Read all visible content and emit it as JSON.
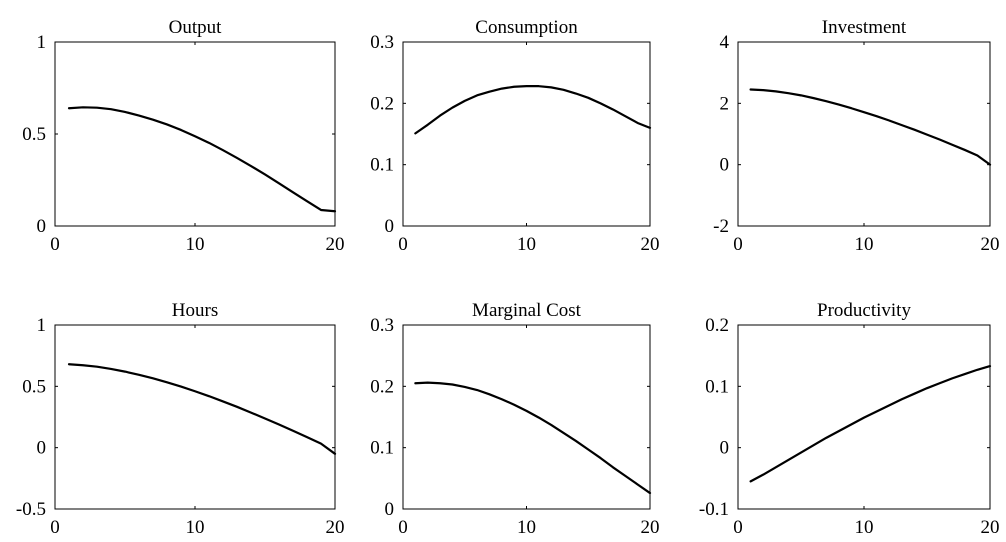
{
  "chart_data": [
    {
      "type": "line",
      "title": "Output",
      "xlabel": "",
      "ylabel": "",
      "xlim": [
        0,
        20
      ],
      "ylim": [
        0,
        1
      ],
      "xticks": [
        "0",
        "10",
        "20"
      ],
      "yticks": [
        "0",
        "0.5",
        "1"
      ],
      "grid": false,
      "series": [
        {
          "x": [
            1,
            2,
            3,
            4,
            5,
            6,
            7,
            8,
            9,
            10,
            11,
            12,
            13,
            14,
            15,
            16,
            17,
            18,
            19,
            20
          ],
          "values": [
            0.64,
            0.645,
            0.643,
            0.635,
            0.62,
            0.6,
            0.578,
            0.552,
            0.522,
            0.488,
            0.452,
            0.412,
            0.37,
            0.326,
            0.28,
            0.232,
            0.183,
            0.135,
            0.087,
            0.08
          ]
        }
      ]
    },
    {
      "type": "line",
      "title": "Consumption",
      "xlabel": "",
      "ylabel": "",
      "xlim": [
        0,
        20
      ],
      "ylim": [
        0,
        0.3
      ],
      "xticks": [
        "0",
        "10",
        "20"
      ],
      "yticks": [
        "0",
        "0.1",
        "0.2",
        "0.3"
      ],
      "grid": false,
      "series": [
        {
          "x": [
            1,
            2,
            3,
            4,
            5,
            6,
            7,
            8,
            9,
            10,
            11,
            12,
            13,
            14,
            15,
            16,
            17,
            18,
            19,
            20
          ],
          "values": [
            0.151,
            0.165,
            0.18,
            0.193,
            0.204,
            0.213,
            0.219,
            0.224,
            0.227,
            0.228,
            0.228,
            0.226,
            0.222,
            0.216,
            0.209,
            0.2,
            0.19,
            0.179,
            0.168,
            0.16
          ]
        }
      ]
    },
    {
      "type": "line",
      "title": "Investment",
      "xlabel": "",
      "ylabel": "",
      "xlim": [
        0,
        20
      ],
      "ylim": [
        -2,
        4
      ],
      "xticks": [
        "0",
        "10",
        "20"
      ],
      "yticks": [
        "-2",
        "0",
        "2",
        "4"
      ],
      "grid": false,
      "series": [
        {
          "x": [
            1,
            2,
            3,
            4,
            5,
            6,
            7,
            8,
            9,
            10,
            11,
            12,
            13,
            14,
            15,
            16,
            17,
            18,
            19,
            20
          ],
          "values": [
            2.45,
            2.43,
            2.39,
            2.33,
            2.26,
            2.17,
            2.07,
            1.96,
            1.84,
            1.71,
            1.58,
            1.44,
            1.29,
            1.14,
            0.98,
            0.82,
            0.65,
            0.48,
            0.3,
            0.0
          ]
        }
      ]
    },
    {
      "type": "line",
      "title": "Hours",
      "xlabel": "",
      "ylabel": "",
      "xlim": [
        0,
        20
      ],
      "ylim": [
        -0.5,
        1
      ],
      "xticks": [
        "0",
        "10",
        "20"
      ],
      "yticks": [
        "-0.5",
        "0",
        "0.5",
        "1"
      ],
      "grid": false,
      "series": [
        {
          "x": [
            1,
            2,
            3,
            4,
            5,
            6,
            7,
            8,
            9,
            10,
            11,
            12,
            13,
            14,
            15,
            16,
            17,
            18,
            19,
            20
          ],
          "values": [
            0.68,
            0.672,
            0.66,
            0.642,
            0.62,
            0.594,
            0.565,
            0.533,
            0.498,
            0.46,
            0.42,
            0.377,
            0.333,
            0.286,
            0.238,
            0.189,
            0.138,
            0.086,
            0.033,
            -0.05
          ]
        }
      ]
    },
    {
      "type": "line",
      "title": "Marginal Cost",
      "xlabel": "",
      "ylabel": "",
      "xlim": [
        0,
        20
      ],
      "ylim": [
        0,
        0.3
      ],
      "xticks": [
        "0",
        "10",
        "20"
      ],
      "yticks": [
        "0",
        "0.1",
        "0.2",
        "0.3"
      ],
      "grid": false,
      "series": [
        {
          "x": [
            1,
            2,
            3,
            4,
            5,
            6,
            7,
            8,
            9,
            10,
            11,
            12,
            13,
            14,
            15,
            16,
            17,
            18,
            19,
            20
          ],
          "values": [
            0.205,
            0.206,
            0.205,
            0.203,
            0.199,
            0.194,
            0.187,
            0.179,
            0.17,
            0.16,
            0.149,
            0.137,
            0.124,
            0.111,
            0.097,
            0.083,
            0.068,
            0.054,
            0.04,
            0.026
          ]
        }
      ]
    },
    {
      "type": "line",
      "title": "Productivity",
      "xlabel": "",
      "ylabel": "",
      "xlim": [
        0,
        20
      ],
      "ylim": [
        -0.1,
        0.2
      ],
      "xticks": [
        "0",
        "10",
        "20"
      ],
      "yticks": [
        "-0.1",
        "0",
        "0.1",
        "0.2"
      ],
      "grid": false,
      "series": [
        {
          "x": [
            1,
            2,
            3,
            4,
            5,
            6,
            7,
            8,
            9,
            10,
            11,
            12,
            13,
            14,
            15,
            16,
            17,
            18,
            19,
            20
          ],
          "values": [
            -0.055,
            -0.044,
            -0.032,
            -0.02,
            -0.008,
            0.004,
            0.016,
            0.027,
            0.038,
            0.049,
            0.059,
            0.069,
            0.079,
            0.088,
            0.097,
            0.105,
            0.113,
            0.12,
            0.127,
            0.133
          ]
        }
      ]
    }
  ]
}
